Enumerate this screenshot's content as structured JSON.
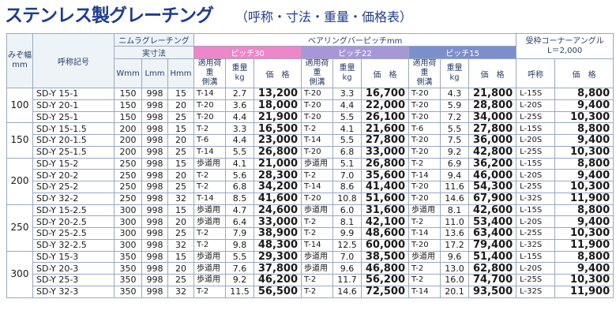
{
  "title": {
    "main": "ステンレス製グレーチング",
    "sub": "（呼称・寸法・重量・価格表）"
  },
  "headers": {
    "width": "みぞ幅\nmm",
    "code": "呼称記号",
    "nimura": "ニムラグレーチング",
    "jissun": "実寸法",
    "W": "Wmm",
    "L": "Lmm",
    "H": "Hmm",
    "bearing": "ベアリングバーピッチmm",
    "pitch30": "ピッチ30",
    "pitch22": "ピッチ22",
    "pitch15": "ピッチ15",
    "load": "適用荷重\n側溝",
    "weight": "重量\nkg",
    "price": "価　格",
    "angle": "受枠コーナーアングル\nL＝2,000",
    "angle_code": "呼称"
  },
  "groups": [
    {
      "width": "100",
      "rows": [
        {
          "code": "SD-Y 15-1",
          "W": "150",
          "L": "998",
          "H": "15",
          "l30": "T-14",
          "w30": "2.7",
          "p30": "13,200",
          "l22": "T-20",
          "w22": "3.3",
          "p22": "16,700",
          "l15": "T-20",
          "w15": "4.3",
          "p15": "21,800",
          "ac": "L-15S",
          "ap": "8,800"
        },
        {
          "code": "SD-Y 20-1",
          "W": "150",
          "L": "998",
          "H": "20",
          "l30": "T-20",
          "w30": "3.6",
          "p30": "18,000",
          "l22": "T-20",
          "w22": "4.4",
          "p22": "22,000",
          "l15": "T-20",
          "w15": "5.9",
          "p15": "28,800",
          "ac": "L-20S",
          "ap": "9,400"
        },
        {
          "code": "SD-Y 25-1",
          "W": "150",
          "L": "998",
          "H": "25",
          "l30": "T-20",
          "w30": "4.4",
          "p30": "21,900",
          "l22": "T-20",
          "w22": "5.5",
          "p22": "26,100",
          "l15": "T-20",
          "w15": "7.2",
          "p15": "34,000",
          "ac": "L-25S",
          "ap": "10,300"
        }
      ]
    },
    {
      "width": "150",
      "rows": [
        {
          "code": "SD-Y 15-1.5",
          "W": "200",
          "L": "998",
          "H": "15",
          "l30": "T-2",
          "w30": "3.3",
          "p30": "16,500",
          "l22": "T-2",
          "w22": "4.1",
          "p22": "21,600",
          "l15": "T-6",
          "w15": "5.5",
          "p15": "27,800",
          "ac": "L-15S",
          "ap": "8,800"
        },
        {
          "code": "SD-Y 20-1.5",
          "W": "200",
          "L": "998",
          "H": "20",
          "l30": "T-6",
          "w30": "4.4",
          "p30": "23,000",
          "l22": "T-14",
          "w22": "5.5",
          "p22": "27,800",
          "l15": "T-20",
          "w15": "7.5",
          "p15": "36,000",
          "ac": "L-20S",
          "ap": "9,400"
        },
        {
          "code": "SD-Y 25-1.5",
          "W": "200",
          "L": "998",
          "H": "25",
          "l30": "T-14",
          "w30": "5.5",
          "p30": "26,800",
          "l22": "T-20",
          "w22": "6.8",
          "p22": "33,000",
          "l15": "T-20",
          "w15": "9.2",
          "p15": "42,800",
          "ac": "L-25S",
          "ap": "10,300"
        }
      ]
    },
    {
      "width": "200",
      "rows": [
        {
          "code": "SD-Y 15-2",
          "W": "250",
          "L": "998",
          "H": "15",
          "l30": "歩道用",
          "w30": "4.1",
          "p30": "21,000",
          "l22": "歩道用",
          "w22": "5.1",
          "p22": "26,800",
          "l15": "T-2",
          "w15": "6.9",
          "p15": "36,200",
          "ac": "L-15S",
          "ap": "8,800"
        },
        {
          "code": "SD-Y 20-2",
          "W": "250",
          "L": "998",
          "H": "20",
          "l30": "T-2",
          "w30": "5.6",
          "p30": "28,300",
          "l22": "T-2",
          "w22": "7.0",
          "p22": "35,600",
          "l15": "T-14",
          "w15": "9.4",
          "p15": "46,000",
          "ac": "L-20S",
          "ap": "9,400"
        },
        {
          "code": "SD-Y 25-2",
          "W": "250",
          "L": "998",
          "H": "25",
          "l30": "T-2",
          "w30": "6.8",
          "p30": "34,200",
          "l22": "T-14",
          "w22": "8.6",
          "p22": "41,400",
          "l15": "T-20",
          "w15": "11.6",
          "p15": "54,300",
          "ac": "L-25S",
          "ap": "10,300"
        },
        {
          "code": "SD-Y 32-2",
          "W": "250",
          "L": "998",
          "H": "32",
          "l30": "T-14",
          "w30": "8.5",
          "p30": "41,600",
          "l22": "T-20",
          "w22": "10.8",
          "p22": "51,600",
          "l15": "T-20",
          "w15": "14.6",
          "p15": "67,900",
          "ac": "L-32S",
          "ap": "11,900"
        }
      ]
    },
    {
      "width": "250",
      "rows": [
        {
          "code": "SD-Y 15-2.5",
          "W": "300",
          "L": "998",
          "H": "15",
          "l30": "歩道用",
          "w30": "4.7",
          "p30": "24,600",
          "l22": "歩道用",
          "w22": "6.0",
          "p22": "31,600",
          "l15": "歩道用",
          "w15": "8.1",
          "p15": "42,600",
          "ac": "L-15S",
          "ap": "8,800"
        },
        {
          "code": "SD-Y 20-2.5",
          "W": "300",
          "L": "998",
          "H": "20",
          "l30": "歩道用",
          "w30": "6.4",
          "p30": "33,000",
          "l22": "T-2",
          "w22": "8.1",
          "p22": "42,100",
          "l15": "T-2",
          "w15": "11.0",
          "p15": "53,400",
          "ac": "L-20S",
          "ap": "9,400"
        },
        {
          "code": "SD-Y 25-2.5",
          "W": "300",
          "L": "998",
          "H": "25",
          "l30": "T-2",
          "w30": "7.9",
          "p30": "38,900",
          "l22": "T-2",
          "w22": "9.9",
          "p22": "48,600",
          "l15": "T-14",
          "w15": "13.6",
          "p15": "63,400",
          "ac": "L-25S",
          "ap": "10,300"
        },
        {
          "code": "SD-Y 32-2.5",
          "W": "300",
          "L": "998",
          "H": "32",
          "l30": "T-2",
          "w30": "9.8",
          "p30": "48,300",
          "l22": "T-14",
          "w22": "12.5",
          "p22": "60,000",
          "l15": "T-20",
          "w15": "17.2",
          "p15": "79,400",
          "ac": "L-32S",
          "ap": "11,900"
        }
      ]
    },
    {
      "width": "300",
      "rows": [
        {
          "code": "SD-Y 15-3",
          "W": "350",
          "L": "998",
          "H": "15",
          "l30": "歩道用",
          "w30": "5.5",
          "p30": "29,300",
          "l22": "歩道用",
          "w22": "7.0",
          "p22": "38,500",
          "l15": "歩道用",
          "w15": "9.6",
          "p15": "51,400",
          "ac": "L-15S",
          "ap": "8,800"
        },
        {
          "code": "SD-Y 20-3",
          "W": "350",
          "L": "998",
          "H": "20",
          "l30": "歩道用",
          "w30": "7.6",
          "p30": "37,800",
          "l22": "歩道用",
          "w22": "9.6",
          "p22": "46,800",
          "l15": "T-2",
          "w15": "13.0",
          "p15": "62,800",
          "ac": "L-20S",
          "ap": "9,400"
        },
        {
          "code": "SD-Y 25-3",
          "W": "350",
          "L": "998",
          "H": "25",
          "l30": "歩道用",
          "w30": "9.2",
          "p30": "46,200",
          "l22": "T-2",
          "w22": "11.7",
          "p22": "56,200",
          "l15": "T-2",
          "w15": "16.0",
          "p15": "74,700",
          "ac": "L-25S",
          "ap": "10,300"
        },
        {
          "code": "SD-Y 32-3",
          "W": "350",
          "L": "998",
          "H": "32",
          "l30": "T-2",
          "w30": "11.5",
          "p30": "56,500",
          "l22": "T-2",
          "w22": "14.6",
          "p22": "72,500",
          "l15": "T-14",
          "w15": "20.1",
          "p15": "93,500",
          "ac": "L-32S",
          "ap": "11,900"
        }
      ]
    }
  ]
}
